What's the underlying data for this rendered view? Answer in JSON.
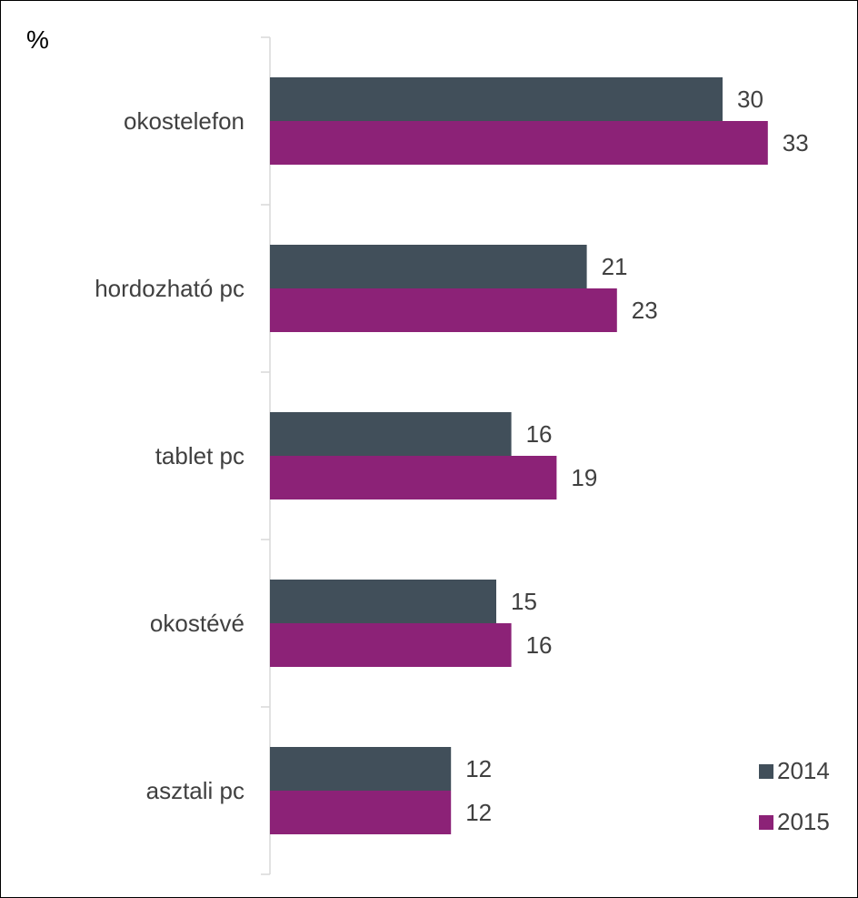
{
  "chart_data": {
    "type": "bar",
    "orientation": "horizontal",
    "unit_label": "%",
    "categories": [
      "okostelefon",
      "hordozható pc",
      "tablet pc",
      "okostévé",
      "asztali pc"
    ],
    "series": [
      {
        "name": "2014",
        "values": [
          30,
          21,
          16,
          15,
          12
        ],
        "color": "#414f5a"
      },
      {
        "name": "2015",
        "values": [
          33,
          23,
          19,
          16,
          12
        ],
        "color": "#8c2277"
      }
    ],
    "xlim": [
      0,
      35
    ],
    "data_labels": true,
    "legend_position": "bottom-right",
    "grid": false
  }
}
